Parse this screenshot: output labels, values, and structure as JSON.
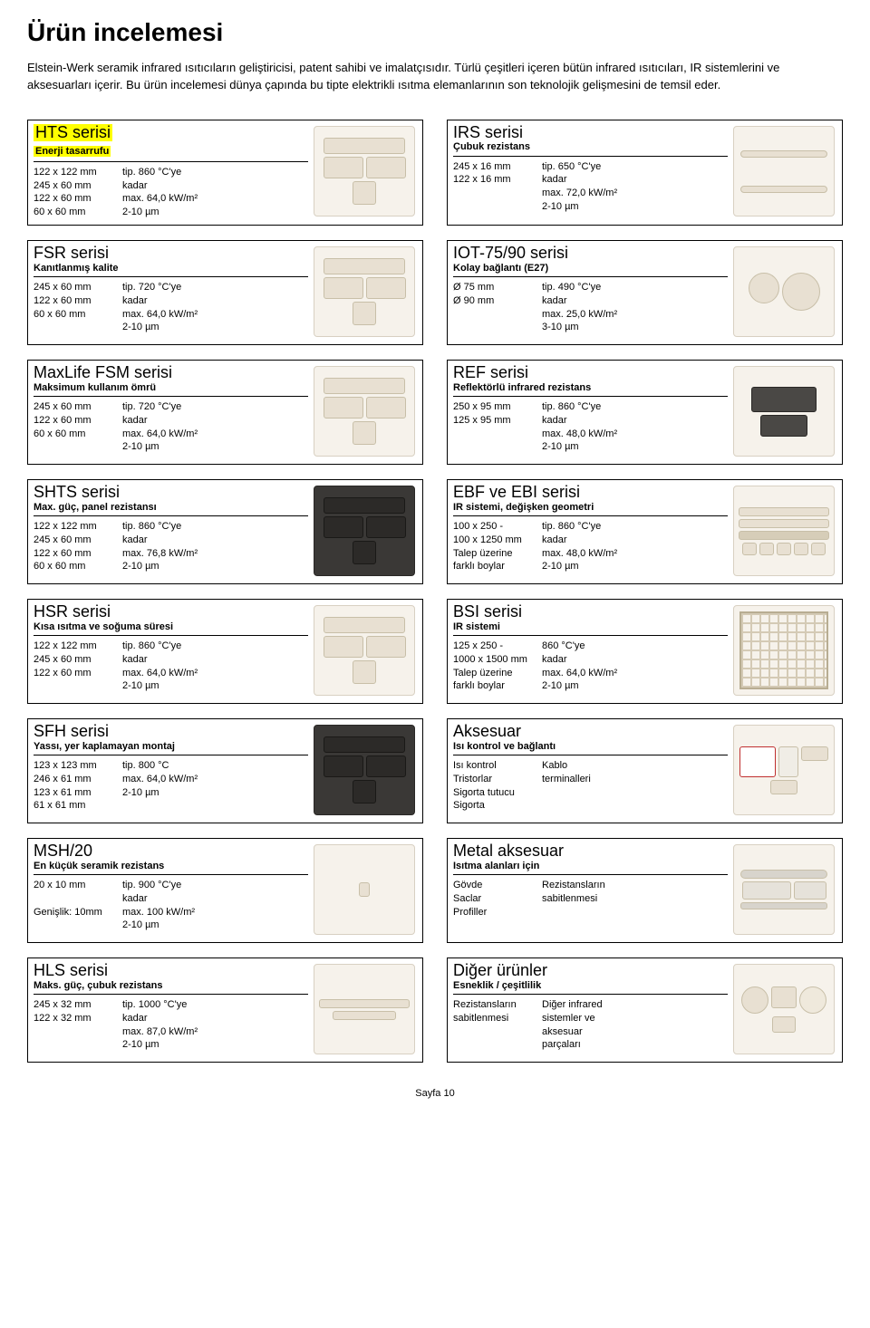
{
  "page_title": "Ürün incelemesi",
  "intro": "Elstein-Werk seramik infrared ısıtıcıların geliştiricisi, patent sahibi ve imalatçısıdır. Türlü çeşitleri içeren bütün infrared ısıtıcıları, IR sistemlerini ve aksesuarları içerir. Bu ürün incelemesi dünya çapında bu tipte elektrikli ısıtma elemanlarının son teknolojik gelişmesini de temsil eder.",
  "footer": "Sayfa 10",
  "cards": [
    {
      "title": "HTS serisi",
      "sub": "Enerji tasarrufu",
      "highlight": true,
      "col1": "122 x 122 mm\n245 x  60 mm\n122 x  60 mm\n 60 x  60 mm",
      "col2": "tip. 860 °C'ye\nkadar\nmax. 64,0 kW/m²\n2-10 µm",
      "img_variant": "heaters-light"
    },
    {
      "title": "IRS serisi",
      "sub": "Çubuk rezistans",
      "col1": "245 x 16 mm\n122 x 16 mm",
      "col2": "tip. 650 °C'ye\nkadar\nmax. 72,0 kW/m²\n2-10 µm",
      "img_variant": "rods"
    },
    {
      "title": "FSR serisi",
      "sub": "Kanıtlanmış kalite",
      "col1": "245 x  60 mm\n122 x  60 mm\n 60 x  60 mm",
      "col2": "tip. 720 °C'ye\nkadar\nmax. 64,0 kW/m²\n2-10 µm",
      "img_variant": "heaters-light"
    },
    {
      "title": "IOT-75/90 serisi",
      "sub": "Kolay bağlantı (E27)",
      "col1": "Ø 75 mm\nØ 90 mm",
      "col2": "tip. 490 °C'ye\nkadar\nmax. 25,0 kW/m²\n3-10 µm",
      "img_variant": "bulbs"
    },
    {
      "title": "MaxLife FSM serisi",
      "sub": "Maksimum kullanım ömrü",
      "col1": "245 x  60 mm\n122 x  60 mm\n 60 x  60 mm",
      "col2": "tip. 720 °C'ye\nkadar\nmax. 64,0 kW/m²\n2-10 µm",
      "img_variant": "heaters-light"
    },
    {
      "title": "REF serisi",
      "sub": "Reflektörlü infrared rezistans",
      "col1": "250 x 95 mm\n125 x 95 mm",
      "col2": "tip. 860 °C'ye\nkadar\nmax. 48,0 kW/m²\n2-10 µm",
      "img_variant": "reflector"
    },
    {
      "title": "SHTS serisi",
      "sub": "Max. güç, panel rezistansı",
      "col1": "122 x 122 mm\n245 x  60 mm\n122 x  60 mm\n 60 x  60 mm",
      "col2": "tip. 860 °C'ye\nkadar\nmax. 76,8 kW/m²\n2-10 µm",
      "img_variant": "heaters-dark"
    },
    {
      "title": "EBF ve EBI serisi",
      "sub": "IR sistemi, değişken geometri",
      "col1": "100 x 250 -\n100 x 1250 mm\nTalep üzerine\nfarklı boylar",
      "col2": "tip. 860 °C'ye\nkadar\nmax. 48,0 kW/m²\n2-10 µm",
      "img_variant": "bars"
    },
    {
      "title": "HSR serisi",
      "sub": "Kısa ısıtma ve soğuma süresi",
      "col1": "122 x 122 mm\n245 x  60 mm\n122 x  60 mm",
      "col2": "tip. 860 °C'ye\nkadar\nmax. 64,0 kW/m²\n2-10 µm",
      "img_variant": "heaters-light"
    },
    {
      "title": "BSI serisi",
      "sub": "IR sistemi",
      "col1": "125 x 250 -\n1000 x 1500 mm\nTalep üzerine\nfarklı boylar",
      "col2": "860 °C'ye\nkadar\nmax. 64,0 kW/m²\n2-10 µm",
      "img_variant": "grid-panel"
    },
    {
      "title": "SFH serisi",
      "sub": "Yassı, yer kaplamayan montaj",
      "col1": "123 x 123 mm\n246 x  61 mm\n123 x  61 mm\n 61 x  61 mm",
      "col2": "tip. 800 °C\nmax. 64,0 kW/m²\n2-10 µm",
      "img_variant": "heaters-dark"
    },
    {
      "title": "Aksesuar",
      "sub": "Isı kontrol ve bağlantı",
      "col1": "Isı kontrol\nTristorlar\nSigorta tutucu\nSigorta",
      "col2": "Kablo\nterminalleri",
      "img_variant": "accessories"
    },
    {
      "title": "MSH/20",
      "sub": "En küçük seramik rezistans",
      "col1": "20 x 10 mm\n\nGenişlik: 10mm",
      "col2": "tip. 900 °C'ye\nkadar\nmax. 100 kW/m²\n2-10 µm",
      "img_variant": "mini"
    },
    {
      "title": "Metal aksesuar",
      "sub": "Isıtma alanları için",
      "col1": "Gövde\nSaclar\nProfiller",
      "col2": "Rezistansların\nsabitlenmesi",
      "img_variant": "metal-parts"
    },
    {
      "title": "HLS serisi",
      "sub": "Maks. güç, çubuk rezistans",
      "col1": "245 x 32 mm\n122 x 32 mm",
      "col2": "tip. 1000 °C'ye\nkadar\nmax. 87,0 kW/m²\n2-10 µm",
      "img_variant": "long-rods"
    },
    {
      "title": "Diğer ürünler",
      "sub": "Esneklik / çeşitlilik",
      "col1": "Rezistansların\nsabitlenmesi",
      "col2": "Diğer infrared\nsistemler ve\naksesuar\nparçaları",
      "img_variant": "misc"
    }
  ]
}
